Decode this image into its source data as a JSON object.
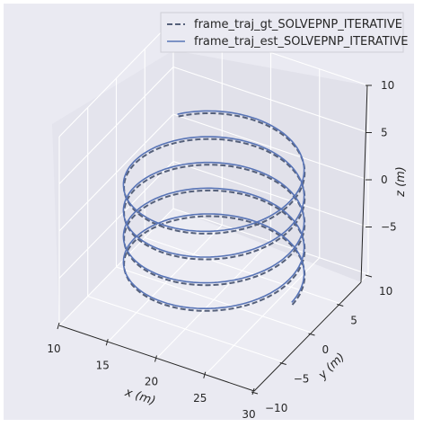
{
  "chart_data": {
    "type": "line",
    "projection": "3d",
    "xlabel": "x (m)",
    "ylabel": "y (m)",
    "zlabel": "z (m)",
    "xlim": [
      10,
      30
    ],
    "ylim": [
      -10,
      10
    ],
    "zlim": [
      -10,
      10
    ],
    "xticks": [
      "10",
      "15",
      "20",
      "25",
      "30"
    ],
    "yticks": [
      "−10",
      "−5",
      "0",
      "5",
      "10"
    ],
    "zticks": [
      "−5",
      "0",
      "5",
      "10"
    ],
    "legend_position": "top-right",
    "grid": true,
    "trajectory": {
      "shape": "helix",
      "center_x": 20,
      "center_y": 0,
      "radius": 8,
      "turns": 4.4,
      "z_start": -7.5,
      "z_end": 4.5
    },
    "series": [
      {
        "name": "frame_traj_gt_SOLVEPNP_ITERATIVE",
        "style": "dashed",
        "color": "#55607a"
      },
      {
        "name": "frame_traj_est_SOLVEPNP_ITERATIVE",
        "style": "solid",
        "color": "#5874b6"
      }
    ]
  }
}
